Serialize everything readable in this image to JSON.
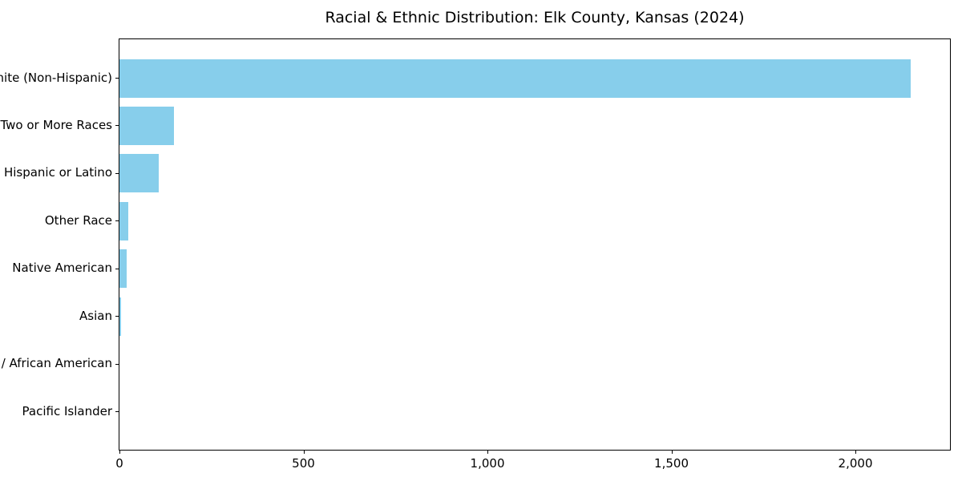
{
  "chart_data": {
    "type": "bar",
    "orientation": "horizontal",
    "title": "Racial & Ethnic Distribution: Elk County, Kansas (2024)",
    "categories": [
      "White (Non-Hispanic)",
      "Two or More Races",
      "Hispanic or Latino",
      "Other Race",
      "Native American",
      "Asian",
      "Black / African American",
      "Pacific Islander"
    ],
    "values": [
      2150,
      148,
      107,
      25,
      19,
      4,
      0,
      0
    ],
    "xlabel": "",
    "ylabel": "",
    "xlim": [
      0,
      2257
    ],
    "xticks": [
      0,
      500,
      1000,
      1500,
      2000
    ],
    "xtick_labels": [
      "0",
      "500",
      "1,000",
      "1,500",
      "2,000"
    ],
    "bar_color": "#87CEEB",
    "axis_color": "#000000",
    "text_color": "#000000",
    "background": "#FFFFFF",
    "grid": false,
    "legend": "none"
  }
}
